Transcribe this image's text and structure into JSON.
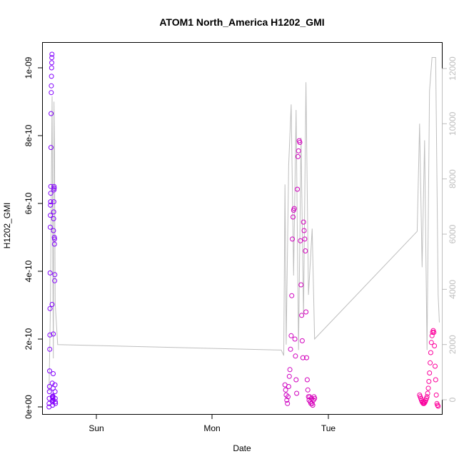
{
  "chart_data": {
    "type": "scatter",
    "title": "ATOM1 North_America H1202_GMI",
    "xlabel": "Date",
    "ylabel": "H1202_GMI",
    "x_ticks": [
      "Sun",
      "Mon",
      "Tue"
    ],
    "y_ticks": [
      "0e+00",
      "2e-10",
      "4e-10",
      "6e-10",
      "8e-10",
      "1e-09"
    ],
    "y_tick_values": [
      0,
      2e-10,
      4e-10,
      6e-10,
      8e-10,
      1e-09
    ],
    "ylim": [
      0,
      1.04e-09
    ],
    "y2_ticks": [
      "0",
      "2000",
      "4000",
      "6000",
      "8000",
      "10000",
      "12000"
    ],
    "y2_tick_values": [
      0,
      2000,
      4000,
      6000,
      8000,
      10000,
      12000
    ],
    "y2lim": [
      0,
      12500
    ],
    "grid": false,
    "colors": {
      "scatter_start": "#7f00ff",
      "scatter_end": "#ff0099",
      "secondary_line": "#bebebe"
    },
    "scatter": [
      {
        "x": -0.38,
        "y": 0
      },
      {
        "x": -0.379,
        "y": 1e-11
      },
      {
        "x": -0.378,
        "y": 2.5e-11
      },
      {
        "x": -0.377,
        "y": 4.5e-11
      },
      {
        "x": -0.376,
        "y": 6e-11
      },
      {
        "x": -0.375,
        "y": 1.06e-10
      },
      {
        "x": -0.374,
        "y": 1.7e-10
      },
      {
        "x": -0.373,
        "y": 2.12e-10
      },
      {
        "x": -0.372,
        "y": 2.9e-10
      },
      {
        "x": -0.371,
        "y": 3.95e-10
      },
      {
        "x": -0.37,
        "y": 5.3e-10
      },
      {
        "x": -0.369,
        "y": 5.65e-10
      },
      {
        "x": -0.368,
        "y": 5.95e-10
      },
      {
        "x": -0.367,
        "y": 6.05e-10
      },
      {
        "x": -0.366,
        "y": 6.3e-10
      },
      {
        "x": -0.365,
        "y": 6.5e-10
      },
      {
        "x": -0.364,
        "y": 7.65e-10
      },
      {
        "x": -0.363,
        "y": 8.65e-10
      },
      {
        "x": -0.362,
        "y": 9.27e-10
      },
      {
        "x": -0.361,
        "y": 9.47e-10
      },
      {
        "x": -0.36,
        "y": 9.75e-10
      },
      {
        "x": -0.359,
        "y": 1e-09
      },
      {
        "x": -0.358,
        "y": 1.015e-09
      },
      {
        "x": -0.357,
        "y": 1.03e-09
      },
      {
        "x": -0.356,
        "y": 1.04e-09
      },
      {
        "x": -0.355,
        "y": 3.02e-10
      },
      {
        "x": -0.354,
        "y": 7e-11
      },
      {
        "x": -0.353,
        "y": 3e-11
      },
      {
        "x": -0.352,
        "y": 1.5e-11
      },
      {
        "x": -0.351,
        "y": 5e-12
      },
      {
        "x": -0.35,
        "y": 2e-11
      },
      {
        "x": -0.349,
        "y": 2.5e-11
      },
      {
        "x": -0.348,
        "y": 3e-11
      },
      {
        "x": -0.347,
        "y": 5.5e-11
      },
      {
        "x": -0.346,
        "y": 9.8e-11
      },
      {
        "x": -0.345,
        "y": 2.15e-10
      },
      {
        "x": -0.344,
        "y": 5.2e-10
      },
      {
        "x": -0.343,
        "y": 5.55e-10
      },
      {
        "x": -0.342,
        "y": 5.75e-10
      },
      {
        "x": -0.341,
        "y": 6.05e-10
      },
      {
        "x": -0.34,
        "y": 6.4e-10
      },
      {
        "x": -0.339,
        "y": 6.5e-10
      },
      {
        "x": -0.338,
        "y": 6.45e-10
      },
      {
        "x": -0.337,
        "y": 5e-10
      },
      {
        "x": -0.336,
        "y": 4.8e-10
      },
      {
        "x": -0.335,
        "y": 4.95e-10
      },
      {
        "x": -0.334,
        "y": 3.72e-10
      },
      {
        "x": -0.333,
        "y": 3.9e-10
      },
      {
        "x": -0.332,
        "y": 6.5e-11
      },
      {
        "x": -0.331,
        "y": 4.5e-11
      },
      {
        "x": -0.33,
        "y": 2.5e-11
      },
      {
        "x": -0.329,
        "y": 1.5e-11
      },
      {
        "x": -0.328,
        "y": 1e-11
      },
      {
        "x": -0.35,
        "y": 2.8e-11
      },
      {
        "x": -0.349,
        "y": 3.2e-11
      },
      {
        "x": -0.348,
        "y": 2e-11
      },
      {
        "x": 1.53,
        "y": 6.5e-11
      },
      {
        "x": 1.535,
        "y": 5e-11
      },
      {
        "x": 1.54,
        "y": 3.5e-11
      },
      {
        "x": 1.545,
        "y": 2e-11
      },
      {
        "x": 1.55,
        "y": 1e-11
      },
      {
        "x": 1.555,
        "y": 3e-11
      },
      {
        "x": 1.56,
        "y": 6e-11
      },
      {
        "x": 1.565,
        "y": 9e-11
      },
      {
        "x": 1.57,
        "y": 1.1e-10
      },
      {
        "x": 1.575,
        "y": 1.7e-10
      },
      {
        "x": 1.58,
        "y": 2.1e-10
      },
      {
        "x": 1.585,
        "y": 3.28e-10
      },
      {
        "x": 1.59,
        "y": 4.95e-10
      },
      {
        "x": 1.595,
        "y": 5.6e-10
      },
      {
        "x": 1.6,
        "y": 5.8e-10
      },
      {
        "x": 1.605,
        "y": 5.85e-10
      },
      {
        "x": 1.61,
        "y": 2e-10
      },
      {
        "x": 1.615,
        "y": 1.5e-10
      },
      {
        "x": 1.62,
        "y": 8e-11
      },
      {
        "x": 1.625,
        "y": 4e-11
      },
      {
        "x": 1.63,
        "y": 6.42e-10
      },
      {
        "x": 1.635,
        "y": 7.38e-10
      },
      {
        "x": 1.64,
        "y": 7.55e-10
      },
      {
        "x": 1.645,
        "y": 7.85e-10
      },
      {
        "x": 1.65,
        "y": 7.8e-10
      },
      {
        "x": 1.655,
        "y": 4.9e-10
      },
      {
        "x": 1.66,
        "y": 3.6e-10
      },
      {
        "x": 1.665,
        "y": 2.7e-10
      },
      {
        "x": 1.67,
        "y": 1.95e-10
      },
      {
        "x": 1.675,
        "y": 1.45e-10
      },
      {
        "x": 1.68,
        "y": 5.45e-10
      },
      {
        "x": 1.685,
        "y": 5.2e-10
      },
      {
        "x": 1.69,
        "y": 4.95e-10
      },
      {
        "x": 1.695,
        "y": 4.6e-10
      },
      {
        "x": 1.7,
        "y": 2.8e-10
      },
      {
        "x": 1.705,
        "y": 1.45e-10
      },
      {
        "x": 1.71,
        "y": 8e-11
      },
      {
        "x": 1.715,
        "y": 5e-11
      },
      {
        "x": 1.72,
        "y": 3e-11
      },
      {
        "x": 1.725,
        "y": 2e-11
      },
      {
        "x": 1.73,
        "y": 3e-11
      },
      {
        "x": 1.735,
        "y": 1.5e-11
      },
      {
        "x": 1.74,
        "y": 1e-11
      },
      {
        "x": 1.745,
        "y": 2.5e-11
      },
      {
        "x": 1.75,
        "y": 1e-11
      },
      {
        "x": 1.755,
        "y": 5e-12
      },
      {
        "x": 1.76,
        "y": 2e-11
      },
      {
        "x": 1.765,
        "y": 3e-11
      },
      {
        "x": 1.77,
        "y": 2.5e-11
      },
      {
        "x": 2.62,
        "y": 3.5e-11
      },
      {
        "x": 2.625,
        "y": 3e-11
      },
      {
        "x": 2.63,
        "y": 2.5e-11
      },
      {
        "x": 2.635,
        "y": 2e-11
      },
      {
        "x": 2.64,
        "y": 1.5e-11
      },
      {
        "x": 2.645,
        "y": 1.2e-11
      },
      {
        "x": 2.65,
        "y": 1e-11
      },
      {
        "x": 2.655,
        "y": 1e-11
      },
      {
        "x": 2.66,
        "y": 1.2e-11
      },
      {
        "x": 2.665,
        "y": 1.5e-11
      },
      {
        "x": 2.67,
        "y": 2e-11
      },
      {
        "x": 2.675,
        "y": 2.5e-11
      },
      {
        "x": 2.68,
        "y": 3e-11
      },
      {
        "x": 2.685,
        "y": 4e-11
      },
      {
        "x": 2.69,
        "y": 5.5e-11
      },
      {
        "x": 2.695,
        "y": 7.5e-11
      },
      {
        "x": 2.7,
        "y": 1e-10
      },
      {
        "x": 2.705,
        "y": 1.3e-10
      },
      {
        "x": 2.71,
        "y": 1.6e-10
      },
      {
        "x": 2.715,
        "y": 1.9e-10
      },
      {
        "x": 2.72,
        "y": 2.1e-10
      },
      {
        "x": 2.725,
        "y": 2.2e-10
      },
      {
        "x": 2.73,
        "y": 2.25e-10
      },
      {
        "x": 2.735,
        "y": 2.2e-10
      },
      {
        "x": 2.74,
        "y": 1.8e-10
      },
      {
        "x": 2.745,
        "y": 1.2e-10
      },
      {
        "x": 2.75,
        "y": 8e-11
      },
      {
        "x": 2.755,
        "y": 3.5e-11
      },
      {
        "x": 2.76,
        "y": 1e-11
      },
      {
        "x": 2.765,
        "y": 5e-12
      },
      {
        "x": 2.77,
        "y": 2e-12
      }
    ],
    "secondary_line": [
      {
        "x": -0.38,
        "y2": 300
      },
      {
        "x": -0.37,
        "y2": 3000
      },
      {
        "x": -0.36,
        "y2": 8200
      },
      {
        "x": -0.355,
        "y2": 11000
      },
      {
        "x": -0.35,
        "y2": 6000
      },
      {
        "x": -0.345,
        "y2": 1500
      },
      {
        "x": -0.34,
        "y2": 10800
      },
      {
        "x": -0.335,
        "y2": 9000
      },
      {
        "x": -0.33,
        "y2": 3500
      },
      {
        "x": -0.31,
        "y2": 2000
      },
      {
        "x": 1.5,
        "y2": 1800
      },
      {
        "x": 1.52,
        "y2": 1600
      },
      {
        "x": 1.53,
        "y2": 7800
      },
      {
        "x": 1.54,
        "y2": 2000
      },
      {
        "x": 1.56,
        "y2": 8500
      },
      {
        "x": 1.58,
        "y2": 10700
      },
      {
        "x": 1.6,
        "y2": 4500
      },
      {
        "x": 1.62,
        "y2": 10500
      },
      {
        "x": 1.64,
        "y2": 1800
      },
      {
        "x": 1.66,
        "y2": 9500
      },
      {
        "x": 1.68,
        "y2": 3000
      },
      {
        "x": 1.7,
        "y2": 11500
      },
      {
        "x": 1.72,
        "y2": 3800
      },
      {
        "x": 1.75,
        "y2": 6200
      },
      {
        "x": 1.77,
        "y2": 2200
      },
      {
        "x": 2.6,
        "y2": 6100
      },
      {
        "x": 2.62,
        "y2": 10000
      },
      {
        "x": 2.64,
        "y2": 4800
      },
      {
        "x": 2.66,
        "y2": 9400
      },
      {
        "x": 2.68,
        "y2": 1800
      },
      {
        "x": 2.7,
        "y2": 11200
      },
      {
        "x": 2.72,
        "y2": 12400
      },
      {
        "x": 2.75,
        "y2": 12400
      },
      {
        "x": 2.77,
        "y2": 3800
      },
      {
        "x": 2.78,
        "y2": 2800
      }
    ]
  }
}
